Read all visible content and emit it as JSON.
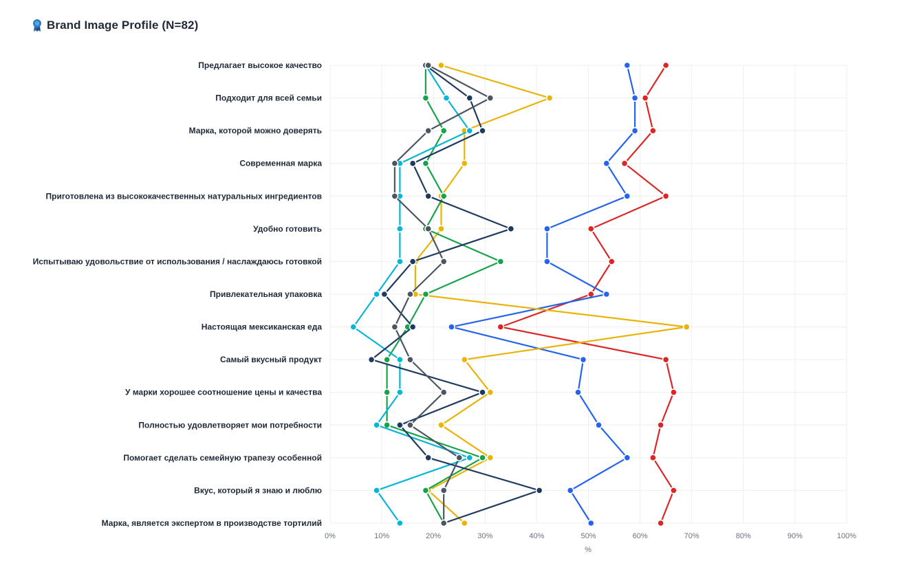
{
  "header": {
    "title": "Brand Image Profile (N=82)",
    "icon": "award-ribbon-icon"
  },
  "chart_data": {
    "type": "line",
    "orientation": "horizontal-profile",
    "title": "Brand Image Profile (N=82)",
    "xlabel": "%",
    "xlim": [
      0,
      100
    ],
    "x_ticks": [
      "0%",
      "10%",
      "20%",
      "30%",
      "40%",
      "50%",
      "60%",
      "70%",
      "80%",
      "90%",
      "100%"
    ],
    "grid": true,
    "categories": [
      "Предлагает высокое качество",
      "Подходит для всей семьи",
      "Марка, которой можно доверять",
      "Современная марка",
      "Приготовлена из высококачественных натуральных ингредиентов",
      "Удобно готовить",
      "Испытываю удовольствие от использования / наслаждаюсь готовкой",
      "Привлекательная упаковка",
      "Настоящая мексиканская еда",
      "Самый вкусный продукт",
      "У марки хорошее соотношение цены и качества",
      "Полностью удовлетворяет мои потребности ",
      "Помогает сделать семейную трапезу особенной",
      "Вкус, который я знаю и люблю",
      "Марка, является экспертом в производстве тортилий"
    ],
    "series": [
      {
        "color": "#dc2626",
        "values": [
          65,
          61,
          62.5,
          57,
          65,
          50.5,
          54.5,
          50.5,
          33,
          65,
          66.5,
          64,
          62.5,
          66.5,
          64
        ]
      },
      {
        "color": "#2563eb",
        "values": [
          57.5,
          59,
          59,
          53.5,
          57.5,
          42,
          42,
          53.5,
          23.5,
          49,
          48,
          52,
          57.5,
          46.5,
          50.5
        ]
      },
      {
        "color": "#eab308",
        "values": [
          21.5,
          42.5,
          26,
          26,
          21.5,
          21.5,
          16.5,
          16.5,
          69,
          26,
          31,
          21.5,
          31,
          19,
          26
        ]
      },
      {
        "color": "#16a34a",
        "values": [
          18.5,
          18.5,
          22,
          18.5,
          22,
          18.5,
          33,
          18.5,
          15,
          11,
          11,
          11,
          29.5,
          18.5,
          22
        ]
      },
      {
        "color": "#06b6d4",
        "values": [
          18.5,
          22.5,
          27,
          13.5,
          13.5,
          13.5,
          13.5,
          9,
          4.5,
          13.5,
          13.5,
          9,
          27,
          9,
          13.5
        ]
      },
      {
        "color": "#1e3a5f",
        "values": [
          18.5,
          27,
          29.5,
          16,
          19,
          35,
          16,
          10.5,
          16,
          8,
          29.5,
          13.5,
          19,
          40.5,
          22
        ]
      },
      {
        "color": "#4b5563",
        "values": [
          19,
          31,
          19,
          12.5,
          12.5,
          19,
          22,
          15.5,
          12.5,
          15.5,
          22,
          15.5,
          25,
          22,
          22
        ]
      }
    ]
  }
}
